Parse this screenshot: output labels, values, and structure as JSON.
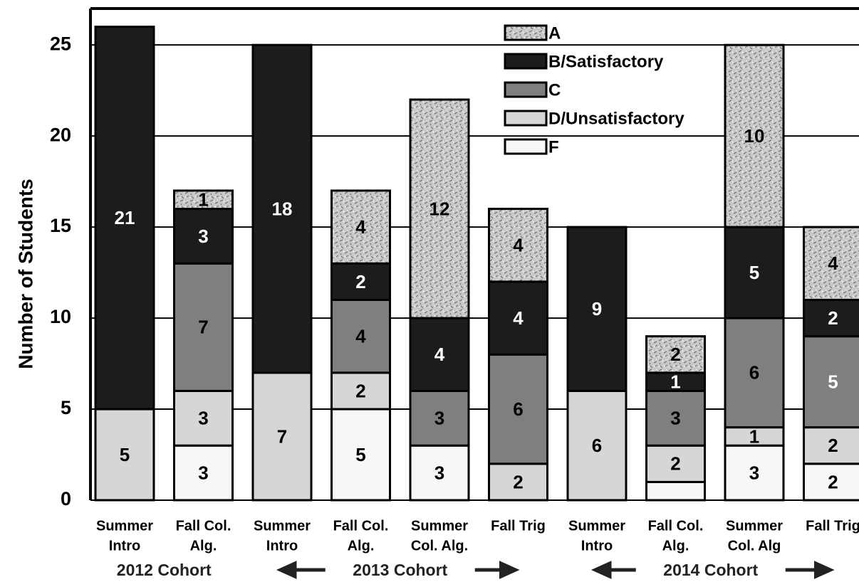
{
  "chart_data": {
    "type": "stacked_bar",
    "ylabel": "Number of Students",
    "categories": [
      [
        "Summer",
        "Intro"
      ],
      [
        "Fall Col.",
        "Alg."
      ],
      [
        "Summer",
        "Intro"
      ],
      [
        "Fall Col.",
        "Alg."
      ],
      [
        "Summer",
        "Col. Alg."
      ],
      [
        "Fall Trig"
      ],
      [
        "Summer",
        "Intro"
      ],
      [
        "Fall Col.",
        "Alg."
      ],
      [
        "Summer",
        "Col. Alg"
      ],
      [
        "Fall Trig"
      ]
    ],
    "groups": [
      "2012 Cohort",
      "2013 Cohort",
      "2014 Cohort"
    ],
    "series": [
      {
        "name": "F",
        "color": "#f7f7f7",
        "values": [
          null,
          3,
          null,
          5,
          3,
          null,
          null,
          1,
          3,
          2
        ],
        "value_labels": [
          null,
          3,
          null,
          5,
          3,
          null,
          null,
          null,
          3,
          2
        ]
      },
      {
        "name": "D/Unsatisfactory",
        "color": "#d6d6d6",
        "values": [
          5,
          3,
          7,
          2,
          null,
          2,
          6,
          2,
          1,
          2
        ]
      },
      {
        "name": "C",
        "color": "#7f7f7f",
        "values": [
          null,
          7,
          null,
          4,
          3,
          6,
          null,
          3,
          6,
          5
        ]
      },
      {
        "name": "B/Satisfactory",
        "color": "#1c1c1c",
        "values": [
          21,
          3,
          18,
          2,
          4,
          4,
          9,
          1,
          5,
          2
        ]
      },
      {
        "name": "A",
        "color": "#c4c4c4",
        "values": [
          null,
          1,
          null,
          4,
          12,
          4,
          null,
          2,
          10,
          4
        ]
      }
    ],
    "ylim": [
      0,
      27
    ],
    "yticks": [
      0,
      5,
      10,
      15,
      20,
      25
    ],
    "grid": true
  }
}
